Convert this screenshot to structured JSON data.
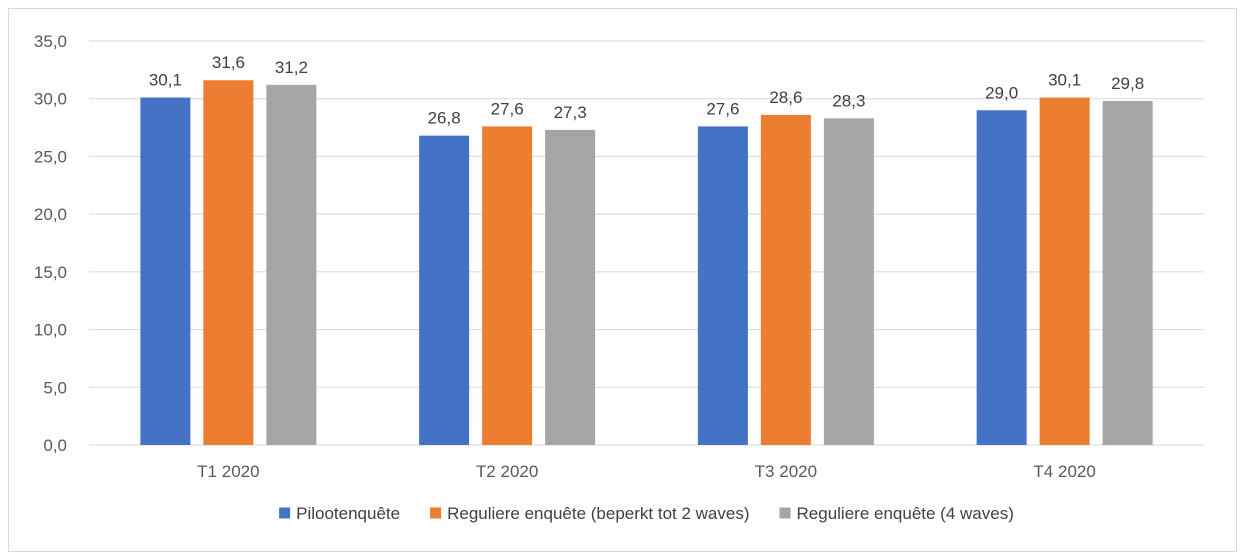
{
  "chart_data": {
    "type": "bar",
    "categories": [
      "T1 2020",
      "T2 2020",
      "T3 2020",
      "T4 2020"
    ],
    "series": [
      {
        "name": "Pilootenquête",
        "color": "#4472C4",
        "values": [
          30.1,
          26.8,
          27.6,
          29.0
        ],
        "labels": [
          "30,1",
          "26,8",
          "27,6",
          "29,0"
        ]
      },
      {
        "name": "Reguliere enquête (beperkt tot 2 waves)",
        "color": "#ED7D31",
        "values": [
          31.6,
          27.6,
          28.6,
          30.1
        ],
        "labels": [
          "31,6",
          "27,6",
          "28,6",
          "30,1"
        ]
      },
      {
        "name": "Reguliere enquête (4 waves)",
        "color": "#A5A5A5",
        "values": [
          31.2,
          27.3,
          28.3,
          29.8
        ],
        "labels": [
          "31,2",
          "27,3",
          "28,3",
          "29,8"
        ]
      }
    ],
    "ylim": [
      0,
      35
    ],
    "yticks": [
      0,
      5,
      10,
      15,
      20,
      25,
      30,
      35
    ],
    "ytick_labels": [
      "0,0",
      "5,0",
      "10,0",
      "15,0",
      "20,0",
      "25,0",
      "30,0",
      "35,0"
    ],
    "title": "",
    "xlabel": "",
    "ylabel": "",
    "grid": true,
    "legend_position": "bottom"
  }
}
